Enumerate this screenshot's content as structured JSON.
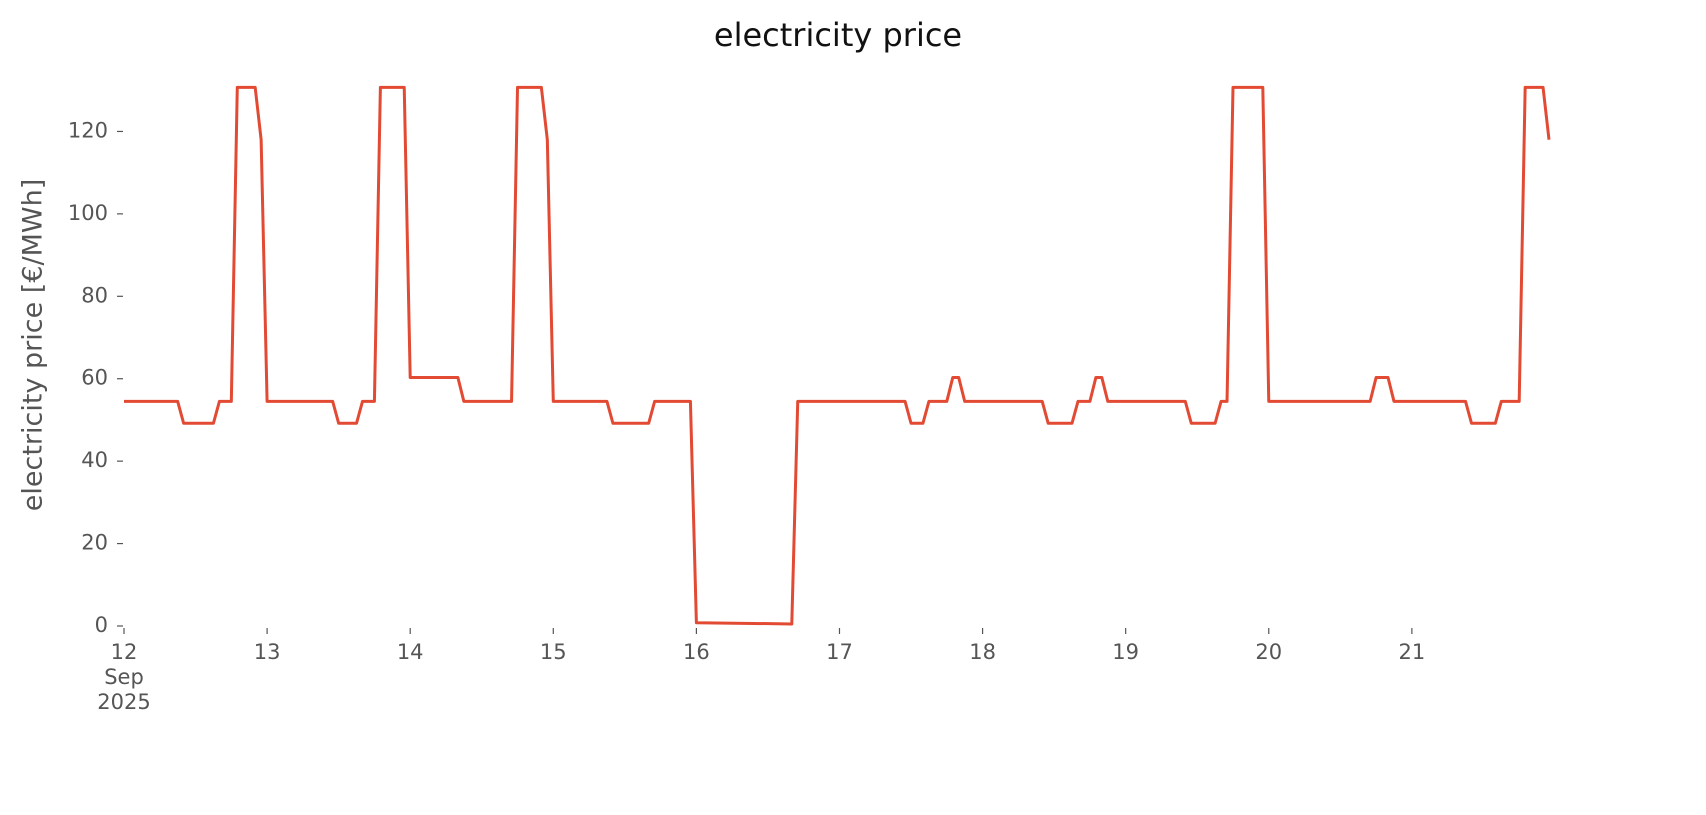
{
  "chart_data": {
    "type": "line",
    "title": "electricity price",
    "ylabel": "electricity price [€/MWh]",
    "x": [
      12,
      12.375,
      12.4167,
      12.625,
      12.6667,
      12.75,
      12.7917,
      12.9167,
      12.9583,
      13,
      13.4583,
      13.5,
      13.625,
      13.6667,
      13.75,
      13.7917,
      13.9583,
      14,
      14.3333,
      14.375,
      14.7083,
      14.75,
      14.9167,
      14.9583,
      15,
      15.375,
      15.4167,
      15.6667,
      15.7083,
      15.9583,
      16,
      16.6667,
      16.7083,
      17.4583,
      17.5,
      17.5833,
      17.625,
      17.75,
      17.7917,
      17.8333,
      17.875,
      18.4167,
      18.4583,
      18.625,
      18.6667,
      18.75,
      18.7917,
      18.8333,
      18.875,
      19.4167,
      19.4583,
      19.625,
      19.6667,
      19.7083,
      19.75,
      19.9583,
      20,
      20.7083,
      20.75,
      20.8333,
      20.875,
      21.375,
      21.4167,
      21.5833,
      21.625,
      21.75,
      21.7917,
      21.9167,
      21.9583
    ],
    "series": [
      {
        "name": "electricity price",
        "color": "#e24a33",
        "values": [
          54.5,
          54.5,
          49.2,
          49.2,
          54.5,
          54.5,
          130.7,
          130.7,
          118,
          54.5,
          54.5,
          49.2,
          49.2,
          54.5,
          54.5,
          130.7,
          130.7,
          60.3,
          60.3,
          54.5,
          54.5,
          130.7,
          130.7,
          118,
          54.5,
          54.5,
          49.2,
          49.2,
          54.5,
          54.5,
          0.8,
          0.5,
          54.5,
          54.5,
          49.2,
          49.2,
          54.5,
          54.5,
          60.3,
          60.3,
          54.5,
          54.5,
          49.2,
          49.2,
          54.5,
          54.5,
          60.3,
          60.3,
          54.5,
          54.5,
          49.2,
          49.2,
          54.5,
          54.5,
          130.7,
          130.7,
          54.5,
          54.5,
          60.3,
          60.3,
          54.5,
          54.5,
          49.2,
          49.2,
          54.5,
          54.5,
          130.7,
          130.7,
          118
        ]
      }
    ],
    "xlim": [
      12,
      21.9583
    ],
    "xticks": [
      {
        "value": 12,
        "label": "12\nSep\n2025"
      },
      13,
      14,
      15,
      16,
      17,
      18,
      19,
      20,
      21
    ],
    "ylim": [
      0,
      132
    ],
    "yticks": [
      0,
      20,
      40,
      60,
      80,
      100,
      120
    ],
    "grid": false
  }
}
